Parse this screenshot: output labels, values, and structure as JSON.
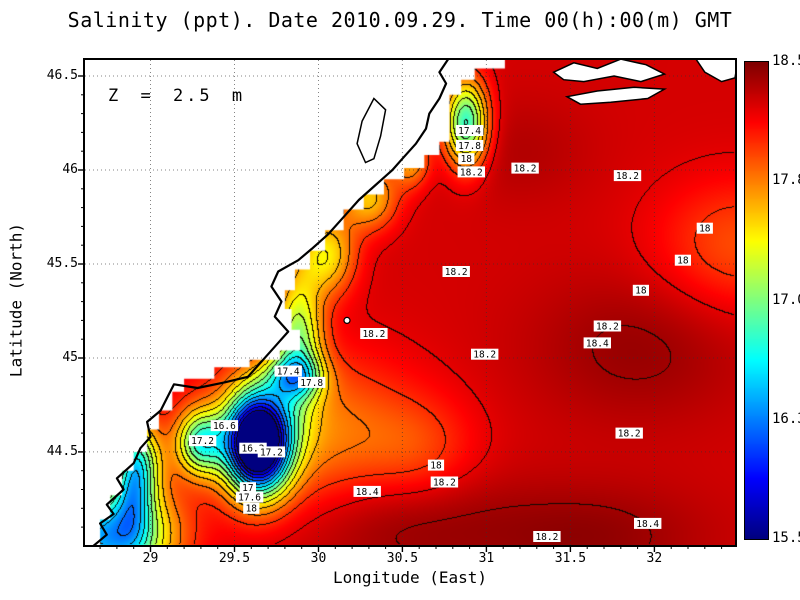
{
  "title": "Salinity (ppt). Date 2010.09.29. Time 00(h):00(m) GMT",
  "annotation": "Z = 2.5 m",
  "axes": {
    "xlabel": "Longitude (East)",
    "ylabel": "Latitude (North)",
    "x_range": [
      28.61,
      32.48
    ],
    "y_range": [
      44.005,
      46.585
    ],
    "x_ticks": [
      {
        "v": 29.0,
        "label": "29"
      },
      {
        "v": 29.5,
        "label": "29.5"
      },
      {
        "v": 30.0,
        "label": "30"
      },
      {
        "v": 30.5,
        "label": "30.5"
      },
      {
        "v": 31.0,
        "label": "31"
      },
      {
        "v": 31.5,
        "label": "31.5"
      },
      {
        "v": 32.0,
        "label": "32"
      }
    ],
    "y_ticks": [
      {
        "v": 44.5,
        "label": "44.5"
      },
      {
        "v": 45.0,
        "label": "45"
      },
      {
        "v": 45.5,
        "label": "45.5"
      },
      {
        "v": 46.0,
        "label": "46"
      },
      {
        "v": 46.5,
        "label": "46.5"
      }
    ],
    "minor_step": 0.1,
    "grid": "dotted"
  },
  "colorbar": {
    "min": 15.5,
    "max": 18.5,
    "tick_labels": [
      "18.5",
      "17.8",
      "17.0",
      "16.3",
      "15.5"
    ],
    "colormap": "jet",
    "top_color": "#7f0000",
    "bottom_color": "#00008f"
  },
  "chart_data": {
    "type": "heatmap",
    "variable": "Salinity",
    "units": "ppt",
    "date": "2010.09.29",
    "time_gmt": "00(h):00(m)",
    "depth_m": 2.5,
    "value_range": [
      15.5,
      18.5
    ],
    "contour_interval": 0.2,
    "field_model": {
      "base": 18.25,
      "gaussians": [
        {
          "lon": 29.64,
          "lat": 44.55,
          "sx": 0.13,
          "sy": 0.18,
          "amp": -3.4
        },
        {
          "lon": 29.9,
          "lat": 44.6,
          "sx": 0.45,
          "sy": 0.3,
          "amp": -0.55
        },
        {
          "lon": 29.3,
          "lat": 44.55,
          "sx": 0.1,
          "sy": 0.12,
          "amp": -1.3
        },
        {
          "lon": 28.9,
          "lat": 44.35,
          "sx": 0.08,
          "sy": 0.2,
          "amp": -1.0
        },
        {
          "lon": 28.75,
          "lat": 44.05,
          "sx": 0.25,
          "sy": 0.18,
          "amp": -1.9
        },
        {
          "lon": 28.95,
          "lat": 44.45,
          "sx": 0.1,
          "sy": 0.15,
          "amp": -0.7
        },
        {
          "lon": 29.85,
          "lat": 44.9,
          "sx": 0.12,
          "sy": 0.08,
          "amp": -0.9
        },
        {
          "lon": 29.88,
          "lat": 45.1,
          "sx": 0.1,
          "sy": 0.25,
          "amp": -1.1
        },
        {
          "lon": 30.05,
          "lat": 45.55,
          "sx": 0.12,
          "sy": 0.15,
          "amp": -0.8
        },
        {
          "lon": 30.3,
          "lat": 45.85,
          "sx": 0.12,
          "sy": 0.12,
          "amp": -0.7
        },
        {
          "lon": 30.55,
          "lat": 46.05,
          "sx": 0.08,
          "sy": 0.1,
          "amp": -0.6
        },
        {
          "lon": 30.88,
          "lat": 46.25,
          "sx": 0.09,
          "sy": 0.16,
          "amp": -1.5
        },
        {
          "lon": 32.5,
          "lat": 45.6,
          "sx": 0.35,
          "sy": 0.25,
          "amp": -0.35
        },
        {
          "lon": 30.6,
          "lat": 44.5,
          "sx": 0.25,
          "sy": 0.2,
          "amp": -0.25
        },
        {
          "lon": 30.45,
          "lat": 44.15,
          "sx": 0.45,
          "sy": 0.22,
          "amp": 0.22
        },
        {
          "lon": 31.6,
          "lat": 44.05,
          "sx": 0.5,
          "sy": 0.2,
          "amp": 0.2
        },
        {
          "lon": 31.9,
          "lat": 45.05,
          "sx": 0.45,
          "sy": 0.28,
          "amp": 0.18
        },
        {
          "lon": 31.2,
          "lat": 46.1,
          "sx": 0.3,
          "sy": 0.2,
          "amp": 0.1
        }
      ]
    },
    "contour_labels": [
      {
        "lon": 30.9,
        "lat": 46.21,
        "text": "17.4"
      },
      {
        "lon": 30.9,
        "lat": 46.13,
        "text": "17.8"
      },
      {
        "lon": 30.88,
        "lat": 46.06,
        "text": "18"
      },
      {
        "lon": 30.91,
        "lat": 45.99,
        "text": "18.2"
      },
      {
        "lon": 31.23,
        "lat": 46.01,
        "text": "18.2"
      },
      {
        "lon": 31.84,
        "lat": 45.97,
        "text": "18.2"
      },
      {
        "lon": 32.3,
        "lat": 45.69,
        "text": "18"
      },
      {
        "lon": 32.17,
        "lat": 45.52,
        "text": "18"
      },
      {
        "lon": 31.92,
        "lat": 45.36,
        "text": "18"
      },
      {
        "lon": 30.82,
        "lat": 45.46,
        "text": "18.2"
      },
      {
        "lon": 31.72,
        "lat": 45.17,
        "text": "18.2"
      },
      {
        "lon": 31.66,
        "lat": 45.08,
        "text": "18.4"
      },
      {
        "lon": 30.33,
        "lat": 45.13,
        "text": "18.2"
      },
      {
        "lon": 30.99,
        "lat": 45.02,
        "text": "18.2"
      },
      {
        "lon": 29.82,
        "lat": 44.93,
        "text": "17.4"
      },
      {
        "lon": 29.96,
        "lat": 44.87,
        "text": "17.8"
      },
      {
        "lon": 29.44,
        "lat": 44.64,
        "text": "16.6"
      },
      {
        "lon": 29.31,
        "lat": 44.56,
        "text": "17.2"
      },
      {
        "lon": 29.61,
        "lat": 44.52,
        "text": "16.2"
      },
      {
        "lon": 29.72,
        "lat": 44.5,
        "text": "17.2"
      },
      {
        "lon": 31.85,
        "lat": 44.6,
        "text": "18.2"
      },
      {
        "lon": 30.7,
        "lat": 44.43,
        "text": "18"
      },
      {
        "lon": 30.75,
        "lat": 44.34,
        "text": "18.2"
      },
      {
        "lon": 29.58,
        "lat": 44.31,
        "text": "17"
      },
      {
        "lon": 29.59,
        "lat": 44.26,
        "text": "17.6"
      },
      {
        "lon": 29.6,
        "lat": 44.2,
        "text": "18"
      },
      {
        "lon": 30.29,
        "lat": 44.29,
        "text": "18.4"
      },
      {
        "lon": 31.36,
        "lat": 44.05,
        "text": "18.2"
      },
      {
        "lon": 31.96,
        "lat": 44.12,
        "text": "18.4"
      }
    ],
    "geo": {
      "sea_mask": [
        [
          28.7,
          44.005
        ],
        [
          28.7,
          44.14
        ],
        [
          28.76,
          44.14
        ],
        [
          28.76,
          44.27
        ],
        [
          28.83,
          44.27
        ],
        [
          28.83,
          44.4
        ],
        [
          28.9,
          44.4
        ],
        [
          28.9,
          44.5
        ],
        [
          28.98,
          44.5
        ],
        [
          28.98,
          44.62
        ],
        [
          29.05,
          44.62
        ],
        [
          29.05,
          44.72
        ],
        [
          29.13,
          44.72
        ],
        [
          29.13,
          44.82
        ],
        [
          29.2,
          44.82
        ],
        [
          29.2,
          44.89
        ],
        [
          29.38,
          44.89
        ],
        [
          29.38,
          44.95
        ],
        [
          29.59,
          44.95
        ],
        [
          29.59,
          44.99
        ],
        [
          29.77,
          44.99
        ],
        [
          29.77,
          45.04
        ],
        [
          29.89,
          45.04
        ],
        [
          29.89,
          45.15
        ],
        [
          29.84,
          45.15
        ],
        [
          29.84,
          45.26
        ],
        [
          29.8,
          45.26
        ],
        [
          29.8,
          45.36
        ],
        [
          29.86,
          45.36
        ],
        [
          29.86,
          45.47
        ],
        [
          29.95,
          45.47
        ],
        [
          29.95,
          45.57
        ],
        [
          30.04,
          45.57
        ],
        [
          30.04,
          45.68
        ],
        [
          30.15,
          45.68
        ],
        [
          30.15,
          45.79
        ],
        [
          30.27,
          45.79
        ],
        [
          30.27,
          45.87
        ],
        [
          30.39,
          45.87
        ],
        [
          30.39,
          45.95
        ],
        [
          30.51,
          45.95
        ],
        [
          30.51,
          46.01
        ],
        [
          30.63,
          46.01
        ],
        [
          30.63,
          46.08
        ],
        [
          30.72,
          46.08
        ],
        [
          30.72,
          46.15
        ],
        [
          30.78,
          46.15
        ],
        [
          30.78,
          46.4
        ],
        [
          30.85,
          46.4
        ],
        [
          30.85,
          46.48
        ],
        [
          30.93,
          46.48
        ],
        [
          30.93,
          46.54
        ],
        [
          31.11,
          46.54
        ],
        [
          31.11,
          46.585
        ],
        [
          32.48,
          46.585
        ],
        [
          32.48,
          44.005
        ]
      ],
      "coastline": [
        [
          28.66,
          44.0
        ],
        [
          28.74,
          44.06
        ],
        [
          28.7,
          44.12
        ],
        [
          28.78,
          44.17
        ],
        [
          28.74,
          44.22
        ],
        [
          28.84,
          44.3
        ],
        [
          28.8,
          44.36
        ],
        [
          28.9,
          44.44
        ],
        [
          28.94,
          44.52
        ],
        [
          29.0,
          44.58
        ],
        [
          28.98,
          44.66
        ],
        [
          29.06,
          44.72
        ],
        [
          29.1,
          44.79
        ],
        [
          29.14,
          44.86
        ],
        [
          29.28,
          44.84
        ],
        [
          29.44,
          44.87
        ],
        [
          29.58,
          44.9
        ],
        [
          29.66,
          44.98
        ],
        [
          29.74,
          45.06
        ],
        [
          29.82,
          45.14
        ],
        [
          29.74,
          45.22
        ],
        [
          29.78,
          45.3
        ],
        [
          29.72,
          45.38
        ],
        [
          29.76,
          45.46
        ],
        [
          29.88,
          45.52
        ],
        [
          29.96,
          45.58
        ],
        [
          30.06,
          45.66
        ],
        [
          30.14,
          45.74
        ],
        [
          30.24,
          45.84
        ],
        [
          30.34,
          45.92
        ],
        [
          30.44,
          46.0
        ],
        [
          30.5,
          46.06
        ],
        [
          30.58,
          46.14
        ],
        [
          30.64,
          46.22
        ],
        [
          30.66,
          46.3
        ],
        [
          30.72,
          46.38
        ],
        [
          30.76,
          46.46
        ],
        [
          30.72,
          46.52
        ],
        [
          30.78,
          46.6
        ]
      ],
      "dniester_lagoon": [
        [
          30.28,
          46.04
        ],
        [
          30.23,
          46.14
        ],
        [
          30.26,
          46.26
        ],
        [
          30.33,
          46.38
        ],
        [
          30.4,
          46.32
        ],
        [
          30.37,
          46.18
        ],
        [
          30.33,
          46.06
        ]
      ],
      "estuary_shapes": [
        [
          [
            31.4,
            46.52
          ],
          [
            31.52,
            46.57
          ],
          [
            31.66,
            46.54
          ],
          [
            31.8,
            46.59
          ],
          [
            31.95,
            46.56
          ],
          [
            32.06,
            46.51
          ],
          [
            31.92,
            46.47
          ],
          [
            31.76,
            46.5
          ],
          [
            31.58,
            46.47
          ],
          [
            31.46,
            46.48
          ]
        ],
        [
          [
            31.48,
            46.39
          ],
          [
            31.66,
            46.42
          ],
          [
            31.88,
            46.44
          ],
          [
            32.06,
            46.43
          ],
          [
            31.96,
            46.38
          ],
          [
            31.74,
            46.36
          ],
          [
            31.56,
            46.35
          ]
        ],
        [
          [
            32.24,
            46.6
          ],
          [
            32.3,
            46.52
          ],
          [
            32.4,
            46.47
          ],
          [
            32.48,
            46.49
          ],
          [
            32.5,
            46.6
          ]
        ]
      ],
      "island": {
        "lon": 30.17,
        "lat": 45.2
      }
    }
  }
}
